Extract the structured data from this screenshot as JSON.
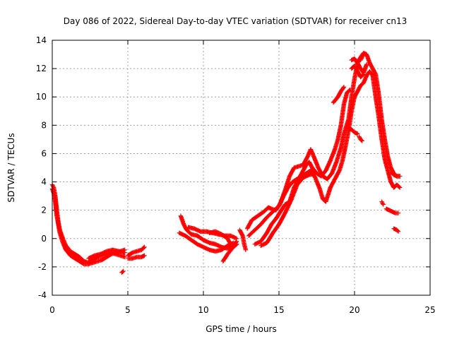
{
  "chart_data": {
    "type": "scatter",
    "title": "Day 086 of 2022, Sidereal Day-to-day VTEC variation (SDTVAR) for receiver cn13",
    "xlabel": "GPS time / hours",
    "ylabel": "SDTVAR / TECUs",
    "xlim": [
      0,
      25
    ],
    "ylim": [
      -4,
      14
    ],
    "xticks": [
      0,
      5,
      10,
      15,
      20,
      25
    ],
    "yticks": [
      -4,
      -2,
      0,
      2,
      4,
      6,
      8,
      10,
      12,
      14
    ],
    "grid": true,
    "marker": "+",
    "series": [
      {
        "name": "SDTVAR",
        "color": "#ff0000",
        "tracks": [
          [
            [
              0.0,
              3.8
            ],
            [
              0.1,
              3.6
            ],
            [
              0.2,
              3.0
            ],
            [
              0.3,
              2.0
            ],
            [
              0.4,
              1.2
            ],
            [
              0.5,
              0.6
            ],
            [
              0.7,
              0.0
            ],
            [
              0.9,
              -0.5
            ],
            [
              1.2,
              -0.9
            ],
            [
              1.5,
              -1.1
            ],
            [
              1.8,
              -1.3
            ],
            [
              2.1,
              -1.6
            ],
            [
              2.4,
              -1.7
            ],
            [
              2.7,
              -1.5
            ],
            [
              3.0,
              -1.3
            ],
            [
              3.3,
              -1.2
            ],
            [
              3.6,
              -1.1
            ],
            [
              3.9,
              -1.0
            ],
            [
              4.2,
              -1.1
            ],
            [
              4.5,
              -1.2
            ],
            [
              4.8,
              -1.3
            ]
          ],
          [
            [
              0.0,
              3.5
            ],
            [
              0.1,
              3.2
            ],
            [
              0.2,
              2.6
            ],
            [
              0.3,
              1.6
            ],
            [
              0.5,
              0.4
            ],
            [
              0.7,
              -0.3
            ],
            [
              0.9,
              -0.8
            ],
            [
              1.2,
              -1.2
            ],
            [
              1.5,
              -1.4
            ],
            [
              1.8,
              -1.6
            ],
            [
              2.1,
              -1.8
            ],
            [
              2.4,
              -1.8
            ],
            [
              2.7,
              -1.7
            ],
            [
              3.0,
              -1.6
            ],
            [
              3.3,
              -1.5
            ],
            [
              3.6,
              -1.3
            ],
            [
              3.9,
              -1.1
            ],
            [
              4.2,
              -1.0
            ],
            [
              4.5,
              -0.9
            ],
            [
              4.8,
              -0.8
            ]
          ],
          [
            [
              2.4,
              -1.4
            ],
            [
              2.8,
              -1.2
            ],
            [
              3.2,
              -1.1
            ],
            [
              3.6,
              -0.9
            ],
            [
              4.0,
              -0.8
            ],
            [
              4.4,
              -0.9
            ],
            [
              4.8,
              -1.0
            ]
          ],
          [
            [
              5.0,
              -1.2
            ],
            [
              5.3,
              -1.0
            ],
            [
              5.6,
              -0.9
            ],
            [
              5.9,
              -0.8
            ],
            [
              6.1,
              -0.6
            ]
          ],
          [
            [
              5.0,
              -1.4
            ],
            [
              5.3,
              -1.4
            ],
            [
              5.6,
              -1.3
            ],
            [
              5.9,
              -1.3
            ],
            [
              6.1,
              -1.2
            ]
          ],
          [
            [
              8.5,
              1.6
            ],
            [
              8.7,
              1.0
            ],
            [
              8.9,
              0.6
            ],
            [
              9.2,
              0.3
            ],
            [
              9.6,
              0.2
            ],
            [
              10.0,
              -0.1
            ],
            [
              10.4,
              -0.3
            ],
            [
              10.8,
              -0.4
            ],
            [
              11.2,
              -0.6
            ],
            [
              11.6,
              -0.7
            ],
            [
              12.0,
              -0.5
            ],
            [
              12.2,
              -0.2
            ]
          ],
          [
            [
              8.4,
              0.4
            ],
            [
              8.8,
              0.2
            ],
            [
              9.2,
              -0.1
            ],
            [
              9.6,
              -0.4
            ],
            [
              10.0,
              -0.6
            ],
            [
              10.4,
              -0.8
            ],
            [
              10.8,
              -0.9
            ],
            [
              11.2,
              -0.8
            ],
            [
              11.6,
              -0.5
            ],
            [
              12.0,
              -0.3
            ]
          ],
          [
            [
              9.0,
              0.8
            ],
            [
              9.4,
              0.7
            ],
            [
              9.8,
              0.5
            ],
            [
              10.2,
              0.5
            ],
            [
              10.6,
              0.4
            ],
            [
              11.0,
              0.3
            ],
            [
              11.4,
              0.2
            ],
            [
              11.8,
              0.2
            ],
            [
              12.2,
              0.0
            ]
          ],
          [
            [
              10.4,
              0.4
            ],
            [
              10.8,
              0.5
            ],
            [
              11.2,
              0.3
            ],
            [
              11.6,
              0.0
            ],
            [
              11.9,
              -0.6
            ],
            [
              12.2,
              -0.4
            ]
          ],
          [
            [
              11.3,
              -1.6
            ],
            [
              11.6,
              -1.1
            ],
            [
              11.9,
              -0.7
            ],
            [
              12.2,
              -0.4
            ]
          ],
          [
            [
              12.4,
              0.6
            ],
            [
              12.6,
              0.2
            ],
            [
              12.7,
              -0.4
            ],
            [
              12.8,
              -0.8
            ]
          ],
          [
            [
              12.9,
              0.7
            ],
            [
              13.2,
              1.3
            ],
            [
              13.6,
              1.6
            ],
            [
              14.0,
              1.9
            ],
            [
              14.3,
              2.2
            ],
            [
              14.5,
              2.1
            ],
            [
              14.8,
              2.0
            ],
            [
              15.1,
              2.5
            ],
            [
              15.4,
              3.4
            ],
            [
              15.7,
              4.4
            ],
            [
              16.0,
              5.0
            ],
            [
              16.3,
              5.1
            ],
            [
              16.6,
              5.2
            ],
            [
              16.9,
              5.8
            ],
            [
              17.1,
              6.3
            ],
            [
              17.3,
              5.8
            ],
            [
              17.6,
              5.0
            ],
            [
              17.9,
              4.4
            ],
            [
              18.2,
              4.2
            ],
            [
              18.5,
              4.6
            ],
            [
              18.8,
              5.4
            ],
            [
              19.1,
              6.4
            ],
            [
              19.3,
              7.4
            ],
            [
              19.6,
              8.4
            ],
            [
              19.8,
              10.0
            ],
            [
              20.0,
              11.3
            ],
            [
              20.2,
              12.4
            ],
            [
              20.4,
              12.8
            ],
            [
              20.6,
              13.1
            ],
            [
              20.8,
              13.0
            ],
            [
              21.0,
              12.4
            ],
            [
              21.2,
              12.0
            ],
            [
              21.4,
              11.6
            ],
            [
              21.6,
              10.2
            ],
            [
              21.8,
              8.4
            ],
            [
              22.0,
              7.0
            ],
            [
              22.2,
              5.8
            ],
            [
              22.4,
              5.0
            ],
            [
              22.6,
              4.6
            ],
            [
              22.8,
              4.4
            ],
            [
              23.0,
              4.4
            ]
          ],
          [
            [
              13.0,
              0.2
            ],
            [
              13.4,
              0.6
            ],
            [
              13.8,
              1.0
            ],
            [
              14.2,
              1.5
            ],
            [
              14.6,
              1.9
            ],
            [
              15.0,
              2.3
            ],
            [
              15.3,
              3.0
            ],
            [
              15.6,
              3.6
            ],
            [
              15.9,
              4.0
            ],
            [
              16.2,
              4.2
            ],
            [
              16.5,
              4.4
            ],
            [
              16.8,
              4.6
            ],
            [
              17.1,
              4.8
            ],
            [
              17.4,
              4.3
            ],
            [
              17.7,
              3.5
            ],
            [
              17.9,
              2.8
            ],
            [
              18.1,
              2.6
            ],
            [
              18.4,
              3.6
            ],
            [
              18.7,
              4.2
            ],
            [
              19.0,
              4.8
            ],
            [
              19.2,
              5.5
            ],
            [
              19.4,
              6.5
            ],
            [
              19.6,
              7.6
            ],
            [
              19.8,
              9.0
            ],
            [
              20.0,
              10.0
            ],
            [
              20.2,
              10.4
            ],
            [
              20.4,
              10.8
            ],
            [
              20.6,
              11.0
            ],
            [
              20.8,
              11.5
            ],
            [
              21.0,
              11.8
            ],
            [
              21.2,
              11.5
            ],
            [
              21.4,
              10.0
            ],
            [
              21.6,
              8.6
            ],
            [
              21.8,
              7.0
            ],
            [
              22.0,
              5.6
            ],
            [
              22.2,
              4.8
            ],
            [
              22.4,
              4.0
            ],
            [
              22.6,
              3.6
            ],
            [
              22.8,
              3.8
            ],
            [
              23.0,
              3.6
            ]
          ],
          [
            [
              13.4,
              -0.4
            ],
            [
              13.8,
              -0.2
            ],
            [
              14.2,
              0.4
            ],
            [
              14.5,
              1.0
            ],
            [
              14.8,
              1.4
            ],
            [
              15.1,
              1.9
            ],
            [
              15.4,
              2.4
            ],
            [
              15.7,
              2.6
            ],
            [
              16.0,
              3.6
            ],
            [
              16.3,
              4.2
            ],
            [
              16.6,
              4.8
            ],
            [
              16.8,
              5.2
            ],
            [
              17.0,
              5.4
            ],
            [
              17.2,
              5.0
            ],
            [
              17.5,
              4.6
            ],
            [
              17.8,
              4.4
            ],
            [
              18.1,
              4.8
            ],
            [
              18.4,
              5.5
            ],
            [
              18.7,
              6.3
            ],
            [
              18.9,
              7.0
            ],
            [
              19.1,
              8.0
            ],
            [
              19.3,
              9.5
            ],
            [
              19.5,
              10.3
            ],
            [
              19.7,
              10.5
            ]
          ],
          [
            [
              13.8,
              -0.5
            ],
            [
              14.2,
              -0.3
            ],
            [
              14.6,
              0.4
            ],
            [
              15.0,
              1.0
            ],
            [
              15.4,
              1.8
            ],
            [
              15.8,
              2.7
            ],
            [
              16.2,
              3.8
            ],
            [
              16.6,
              4.3
            ],
            [
              17.0,
              4.5
            ],
            [
              17.4,
              4.6
            ]
          ],
          [
            [
              18.6,
              9.6
            ],
            [
              18.9,
              10.0
            ],
            [
              19.1,
              10.4
            ],
            [
              19.3,
              10.7
            ]
          ],
          [
            [
              19.8,
              12.6
            ],
            [
              20.0,
              12.7
            ],
            [
              20.2,
              12.4
            ],
            [
              20.4,
              12.0
            ],
            [
              20.6,
              11.7
            ],
            [
              20.8,
              12.3
            ]
          ],
          [
            [
              19.8,
              12.0
            ],
            [
              20.0,
              12.2
            ],
            [
              20.2,
              11.8
            ],
            [
              20.4,
              11.4
            ],
            [
              20.6,
              11.6
            ]
          ],
          [
            [
              19.6,
              7.8
            ],
            [
              19.8,
              7.7
            ],
            [
              20.0,
              7.5
            ],
            [
              20.2,
              7.4
            ]
          ],
          [
            [
              20.3,
              7.2
            ],
            [
              20.4,
              7.0
            ],
            [
              20.5,
              6.9
            ]
          ],
          [
            [
              20.4,
              12.6
            ],
            [
              20.5,
              12.8
            ],
            [
              20.6,
              13.0
            ]
          ],
          [
            [
              22.1,
              2.1
            ],
            [
              22.3,
              2.0
            ],
            [
              22.5,
              1.9
            ],
            [
              22.7,
              1.8
            ],
            [
              22.9,
              1.8
            ]
          ],
          [
            [
              22.4,
              4.7
            ],
            [
              22.6,
              4.5
            ],
            [
              22.8,
              4.4
            ],
            [
              23.0,
              4.4
            ]
          ],
          [
            [
              22.6,
              0.7
            ],
            [
              22.8,
              0.6
            ],
            [
              22.9,
              0.5
            ]
          ],
          [
            [
              21.8,
              2.6
            ],
            [
              21.9,
              2.4
            ]
          ],
          [
            [
              4.6,
              -2.4
            ],
            [
              4.7,
              -2.3
            ]
          ]
        ]
      }
    ]
  }
}
